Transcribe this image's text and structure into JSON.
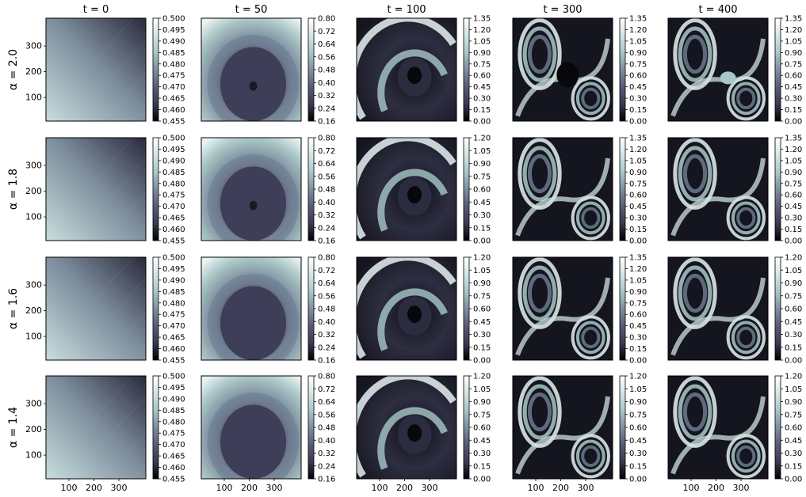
{
  "chart_data": {
    "type": "contour-grid",
    "columns": [
      "t = 0",
      "t = 50",
      "t = 100",
      "t = 300",
      "t = 400"
    ],
    "rows": [
      "α = 2.0",
      "α = 1.8",
      "α = 1.6",
      "α = 1.4"
    ],
    "axis_ticks": {
      "x": [
        "100",
        "200",
        "300"
      ],
      "y": [
        "100",
        "200",
        "300"
      ]
    },
    "colormap": "bone",
    "colormap_stops": [
      "#000000",
      "#3a3a52",
      "#5a5a7a",
      "#7f8fa0",
      "#a8c8c8",
      "#d5e5e5",
      "#ffffff"
    ],
    "colorbars": [
      [
        [
          "0.500",
          "0.495",
          "0.490",
          "0.485",
          "0.480",
          "0.475",
          "0.470",
          "0.465",
          "0.460",
          "0.455"
        ],
        [
          "0.80",
          "0.72",
          "0.64",
          "0.56",
          "0.48",
          "0.40",
          "0.32",
          "0.24",
          "0.16"
        ],
        [
          "1.35",
          "1.20",
          "1.05",
          "0.90",
          "0.75",
          "0.60",
          "0.45",
          "0.30",
          "0.15",
          "0.00"
        ],
        [
          "1.35",
          "1.20",
          "1.05",
          "0.90",
          "0.75",
          "0.60",
          "0.45",
          "0.30",
          "0.15",
          "0.00"
        ],
        [
          "1.35",
          "1.20",
          "1.05",
          "0.90",
          "0.75",
          "0.60",
          "0.45",
          "0.30",
          "0.15",
          "0.00"
        ]
      ],
      [
        [
          "0.500",
          "0.495",
          "0.490",
          "0.485",
          "0.480",
          "0.475",
          "0.470",
          "0.465",
          "0.460",
          "0.455"
        ],
        [
          "0.80",
          "0.72",
          "0.64",
          "0.56",
          "0.48",
          "0.40",
          "0.32",
          "0.24",
          "0.16"
        ],
        [
          "1.20",
          "1.05",
          "0.90",
          "0.75",
          "0.60",
          "0.45",
          "0.30",
          "0.15",
          "0.00"
        ],
        [
          "1.35",
          "1.20",
          "1.05",
          "0.90",
          "0.75",
          "0.60",
          "0.45",
          "0.30",
          "0.15",
          "0.00"
        ],
        [
          "1.35",
          "1.20",
          "1.05",
          "0.90",
          "0.75",
          "0.60",
          "0.45",
          "0.30",
          "0.15",
          "0.00"
        ]
      ],
      [
        [
          "0.500",
          "0.495",
          "0.490",
          "0.485",
          "0.480",
          "0.475",
          "0.470",
          "0.465",
          "0.460",
          "0.455"
        ],
        [
          "0.80",
          "0.72",
          "0.64",
          "0.56",
          "0.48",
          "0.40",
          "0.32",
          "0.24",
          "0.16"
        ],
        [
          "1.20",
          "1.05",
          "0.90",
          "0.75",
          "0.60",
          "0.45",
          "0.30",
          "0.15",
          "0.00"
        ],
        [
          "1.35",
          "1.20",
          "1.05",
          "0.90",
          "0.75",
          "0.60",
          "0.45",
          "0.30",
          "0.15",
          "0.00"
        ],
        [
          "1.20",
          "1.05",
          "0.90",
          "0.75",
          "0.60",
          "0.45",
          "0.30",
          "0.15",
          "0.00"
        ]
      ],
      [
        [
          "0.500",
          "0.495",
          "0.490",
          "0.485",
          "0.480",
          "0.475",
          "0.470",
          "0.465",
          "0.460",
          "0.455"
        ],
        [
          "0.80",
          "0.72",
          "0.64",
          "0.56",
          "0.48",
          "0.40",
          "0.32",
          "0.24",
          "0.16"
        ],
        [
          "1.20",
          "1.05",
          "0.90",
          "0.75",
          "0.60",
          "0.45",
          "0.30",
          "0.15",
          "0.00"
        ],
        [
          "1.20",
          "1.05",
          "0.90",
          "0.75",
          "0.60",
          "0.45",
          "0.30",
          "0.15",
          "0.00"
        ],
        [
          "1.20",
          "1.05",
          "0.90",
          "0.75",
          "0.60",
          "0.45",
          "0.30",
          "0.15",
          "0.00"
        ]
      ]
    ]
  }
}
